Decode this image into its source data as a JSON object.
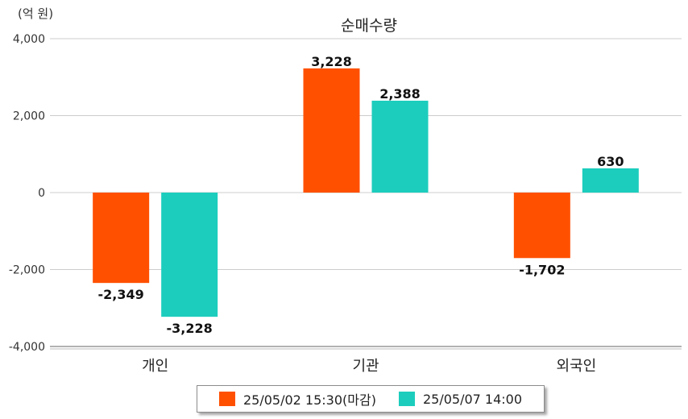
{
  "chart_data": {
    "type": "bar",
    "title": "순매수량",
    "unit_label": "(억 원)",
    "categories": [
      "개인",
      "기관",
      "외국인"
    ],
    "series": [
      {
        "name": "25/05/02 15:30(마감)",
        "color": "#ff5000",
        "values": [
          -2349,
          3228,
          -1702
        ],
        "labels": [
          "-2,349",
          "3,228",
          "-1,702"
        ]
      },
      {
        "name": "25/05/07 14:00",
        "color": "#1ccdbd",
        "values": [
          -3228,
          2388,
          630
        ],
        "labels": [
          "-3,228",
          "2,388",
          "630"
        ]
      }
    ],
    "yticks": [
      4000,
      2000,
      0,
      -2000,
      -4000
    ],
    "ytick_labels": [
      "4,000",
      "2,000",
      "0",
      "-2,000",
      "-4,000"
    ],
    "ylim": [
      -4000,
      4000
    ],
    "grid": true,
    "legend_position": "bottom"
  }
}
